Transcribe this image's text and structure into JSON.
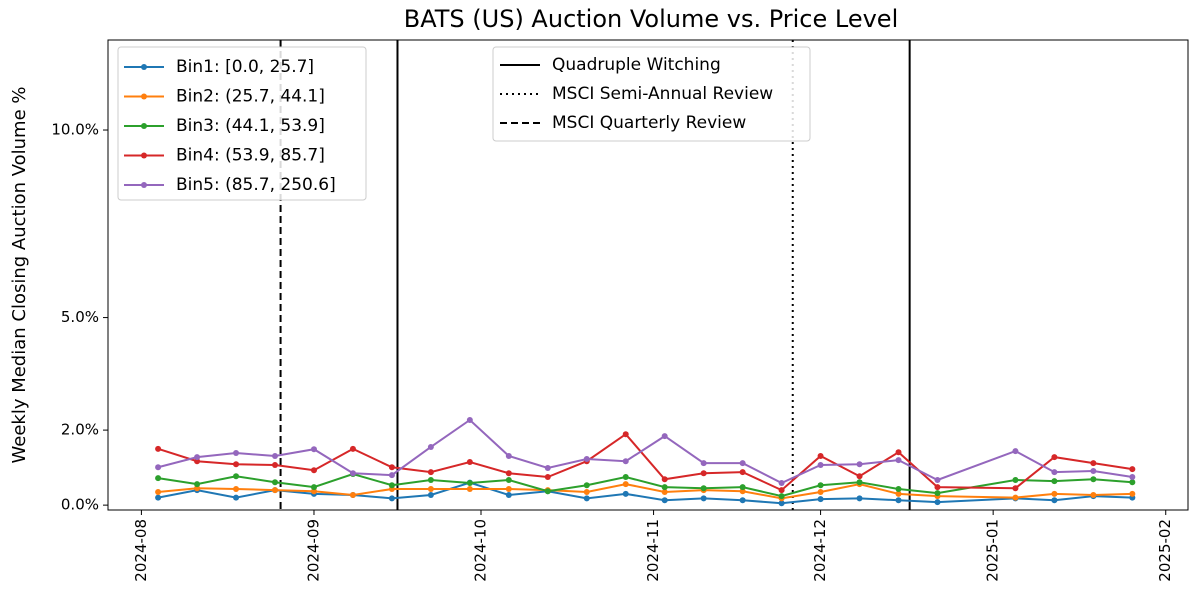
{
  "chart_data": {
    "type": "line",
    "title": "BATS (US) Auction Volume vs. Price Level",
    "y_label": "Weekly Median Closing Auction Volume %",
    "x": [
      "2024-08-04",
      "2024-08-11",
      "2024-08-18",
      "2024-08-25",
      "2024-09-01",
      "2024-09-08",
      "2024-09-15",
      "2024-09-22",
      "2024-09-29",
      "2024-10-06",
      "2024-10-13",
      "2024-10-20",
      "2024-10-27",
      "2024-11-03",
      "2024-11-10",
      "2024-11-17",
      "2024-11-24",
      "2024-12-01",
      "2024-12-08",
      "2024-12-15",
      "2024-12-22",
      "2025-01-05",
      "2025-01-12",
      "2025-01-19",
      "2025-01-26"
    ],
    "series": [
      {
        "name": "Bin1: [0.0, 25.7]",
        "color": "#1f77b4",
        "values": [
          0.2,
          0.4,
          0.2,
          0.4,
          0.3,
          0.27,
          0.18,
          0.27,
          0.6,
          0.27,
          0.37,
          0.18,
          0.3,
          0.13,
          0.18,
          0.13,
          0.05,
          0.16,
          0.18,
          0.13,
          0.08,
          0.18,
          0.13,
          0.24,
          0.2
        ]
      },
      {
        "name": "Bin2: (25.7, 44.1]",
        "color": "#ff7f0e",
        "values": [
          0.35,
          0.45,
          0.43,
          0.4,
          0.37,
          0.27,
          0.43,
          0.43,
          0.43,
          0.43,
          0.4,
          0.35,
          0.56,
          0.35,
          0.4,
          0.37,
          0.18,
          0.35,
          0.56,
          0.3,
          0.24,
          0.2,
          0.3,
          0.27,
          0.3
        ]
      },
      {
        "name": "Bin3: (44.1, 53.9]",
        "color": "#2ca02c",
        "values": [
          0.72,
          0.56,
          0.77,
          0.61,
          0.48,
          0.83,
          0.53,
          0.67,
          0.59,
          0.67,
          0.37,
          0.53,
          0.75,
          0.48,
          0.45,
          0.48,
          0.24,
          0.53,
          0.61,
          0.43,
          0.32,
          0.67,
          0.64,
          0.69,
          0.61
        ]
      },
      {
        "name": "Bin4: (53.9, 85.7]",
        "color": "#d62728",
        "values": [
          1.5,
          1.17,
          1.09,
          1.07,
          0.93,
          1.5,
          1.01,
          0.88,
          1.15,
          0.85,
          0.75,
          1.17,
          1.89,
          0.69,
          0.85,
          0.88,
          0.4,
          1.31,
          0.77,
          1.41,
          0.48,
          0.45,
          1.28,
          1.12,
          0.96
        ]
      },
      {
        "name": "Bin5: (85.7, 250.6]",
        "color": "#9467bd",
        "values": [
          1.01,
          1.28,
          1.39,
          1.31,
          1.49,
          0.85,
          0.8,
          1.55,
          2.27,
          1.31,
          0.99,
          1.23,
          1.17,
          1.84,
          1.12,
          1.12,
          0.59,
          1.07,
          1.09,
          1.2,
          0.67,
          1.44,
          0.88,
          0.91,
          0.75
        ]
      }
    ],
    "vlines": [
      {
        "name": "Quadruple Witching",
        "style": "solid",
        "x": [
          "2024-09-16",
          "2024-12-17"
        ]
      },
      {
        "name": "MSCI Semi-Annual Review",
        "style": "dotted",
        "x": [
          "2024-11-26"
        ]
      },
      {
        "name": "MSCI Quarterly Review",
        "style": "dashed",
        "x": [
          "2024-08-26"
        ]
      }
    ],
    "xlim": [
      "2024-07-26",
      "2025-02-05"
    ],
    "xticks": [
      {
        "value": "2024-08-01",
        "label": "2024-08"
      },
      {
        "value": "2024-09-01",
        "label": "2024-09"
      },
      {
        "value": "2024-10-01",
        "label": "2024-10"
      },
      {
        "value": "2024-11-01",
        "label": "2024-11"
      },
      {
        "value": "2024-12-01",
        "label": "2024-12"
      },
      {
        "value": "2025-01-01",
        "label": "2025-01"
      },
      {
        "value": "2025-02-01",
        "label": "2025-02"
      }
    ],
    "ylim": [
      -0.13,
      12.4
    ],
    "yticks": [
      {
        "value": 0,
        "label": "0.0%"
      },
      {
        "value": 2,
        "label": "2.0%"
      },
      {
        "value": 5,
        "label": "5.0%"
      },
      {
        "value": 10,
        "label": "10.0%"
      }
    ],
    "legend": "upper left"
  }
}
